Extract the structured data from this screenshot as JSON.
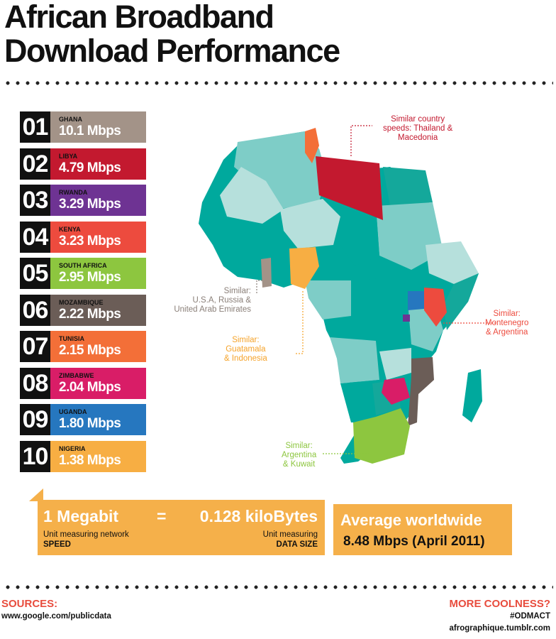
{
  "title": {
    "line1": "African Broadband",
    "line2": "Download Performance"
  },
  "chart_data": {
    "type": "table",
    "unit": "Mbps",
    "rows": [
      {
        "rank": "01",
        "country": "GHANA",
        "speed": "10.1 Mbps",
        "value": 10.1,
        "color": "#a39388"
      },
      {
        "rank": "02",
        "country": "LIBYA",
        "speed": "4.79 Mbps",
        "value": 4.79,
        "color": "#c3192f"
      },
      {
        "rank": "03",
        "country": "RWANDA",
        "speed": "3.29 Mbps",
        "value": 3.29,
        "color": "#6e3393"
      },
      {
        "rank": "04",
        "country": "KENYA",
        "speed": "3.23 Mbps",
        "value": 3.23,
        "color": "#ed4b3e"
      },
      {
        "rank": "05",
        "country": "SOUTH AFRICA",
        "speed": "2.95 Mbps",
        "value": 2.95,
        "color": "#8dc63f"
      },
      {
        "rank": "06",
        "country": "MOZAMBIQUE",
        "speed": "2.22 Mbps",
        "value": 2.22,
        "color": "#6b5d57"
      },
      {
        "rank": "07",
        "country": "TUNISIA",
        "speed": "2.15 Mbps",
        "value": 2.15,
        "color": "#f36f38"
      },
      {
        "rank": "08",
        "country": "ZIMBABWE",
        "speed": "2.04 Mbps",
        "value": 2.04,
        "color": "#d91d67"
      },
      {
        "rank": "09",
        "country": "UGANDA",
        "speed": "1.80 Mbps",
        "value": 1.8,
        "color": "#2677bf"
      },
      {
        "rank": "10",
        "country": "NIGERIA",
        "speed": "1.38 Mbps",
        "value": 1.38,
        "color": "#f7ae43"
      }
    ]
  },
  "map": {
    "base_colors": [
      "#00a99d",
      "#7ecdc7",
      "#b6e0dc",
      "#14a89b"
    ],
    "annotations": [
      {
        "lines": [
          "Similar country",
          "speeds: Thailand  &",
          "Macedonia"
        ],
        "color": "#c3192f"
      },
      {
        "lines": [
          "Similar:",
          "U.S.A, Russia &",
          "United Arab Emirates"
        ],
        "color": "#8a7f78"
      },
      {
        "lines": [
          "Similar:",
          "Guatamala",
          "& Indonesia"
        ],
        "color": "#f5a32a"
      },
      {
        "lines": [
          "Similar:",
          "Montenegro",
          "& Argentina"
        ],
        "color": "#ed4b3e"
      },
      {
        "lines": [
          "Similar:",
          "Argentina",
          "& Kuwait"
        ],
        "color": "#8dc63f"
      }
    ]
  },
  "units": {
    "left_value": "1 Megabit",
    "equals": "=",
    "right_value": "0.128 kiloBytes",
    "left_desc_1": "Unit measuring network",
    "left_desc_2": "SPEED",
    "right_desc_1": "Unit measuring",
    "right_desc_2": "DATA SIZE"
  },
  "average": {
    "title": "Average worldwide",
    "value": "8.48 Mbps (April 2011)"
  },
  "footer": {
    "sources_heading": "SOURCES:",
    "sources_value": "www.google.com/publicdata",
    "more_heading": "MORE COOLNESS?",
    "hashtag": "#ODMACT",
    "url": "afrographique.tumblr.com"
  }
}
